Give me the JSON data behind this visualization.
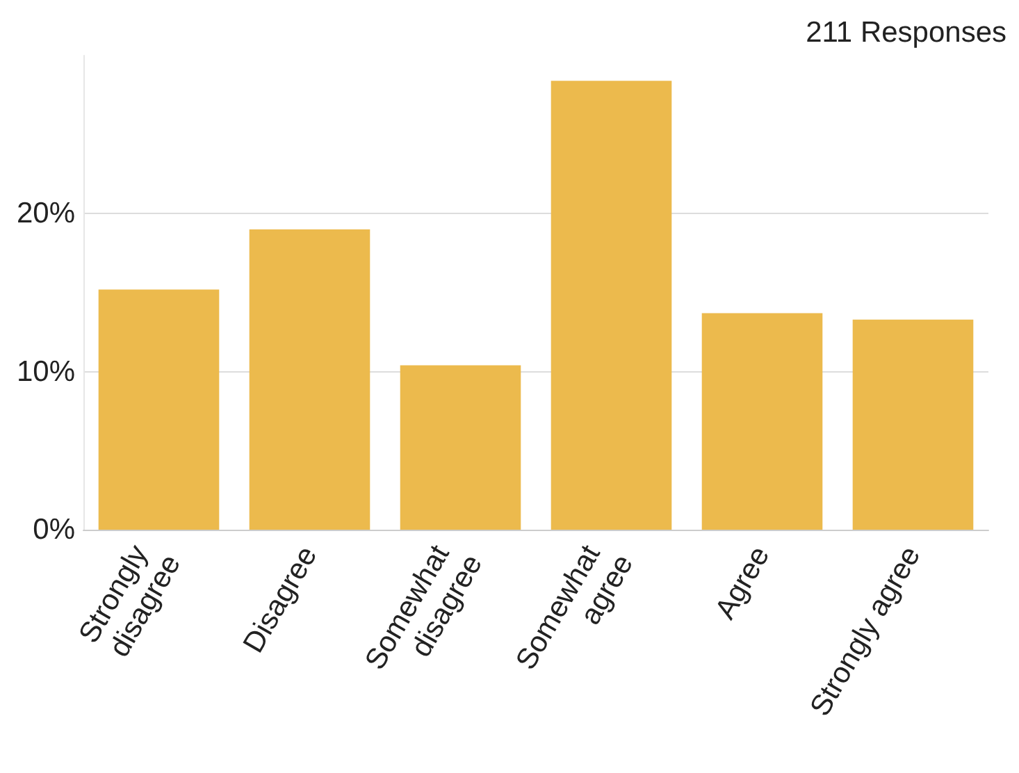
{
  "chart_data": {
    "type": "bar",
    "title": "211 Responses",
    "categories": [
      "Strongly disagree",
      "Disagree",
      "Somewhat disagree",
      "Somewhat agree",
      "Agree",
      "Strongly agree"
    ],
    "values": [
      15.2,
      19.0,
      10.4,
      28.4,
      13.7,
      13.3
    ],
    "color": "#ecba4d",
    "ylim": [
      0,
      30
    ],
    "yticks": [
      {
        "value": 0,
        "label": "0%"
      },
      {
        "value": 10,
        "label": "10%"
      },
      {
        "value": 20,
        "label": "20%"
      }
    ],
    "grid": "y"
  }
}
